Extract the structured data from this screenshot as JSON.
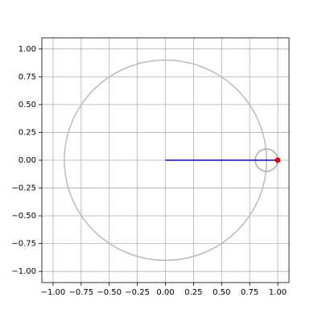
{
  "chart_data": {
    "type": "epicycle",
    "xlim": [
      -1.1,
      1.1
    ],
    "ylim": [
      -1.1,
      1.1
    ],
    "xticks": [
      {
        "value": -1,
        "label": "−1.00"
      },
      {
        "value": -0.75,
        "label": "−0.75"
      },
      {
        "value": -0.5,
        "label": "−0.50"
      },
      {
        "value": -0.25,
        "label": "−0.25"
      },
      {
        "value": 0,
        "label": "0.00"
      },
      {
        "value": 0.25,
        "label": "0.25"
      },
      {
        "value": 0.5,
        "label": "0.50"
      },
      {
        "value": 0.75,
        "label": "0.75"
      },
      {
        "value": 1,
        "label": "1.00"
      }
    ],
    "yticks": [
      {
        "value": -1,
        "label": "−1.00"
      },
      {
        "value": -0.75,
        "label": "−0.75"
      },
      {
        "value": -0.5,
        "label": "−0.50"
      },
      {
        "value": -0.25,
        "label": "−0.25"
      },
      {
        "value": 0,
        "label": "0.00"
      },
      {
        "value": 0.25,
        "label": "0.25"
      },
      {
        "value": 0.5,
        "label": "0.50"
      },
      {
        "value": 0.75,
        "label": "0.75"
      },
      {
        "value": 1,
        "label": "1.00"
      }
    ],
    "grid": true,
    "circles": [
      {
        "cx": 0,
        "cy": 0,
        "r": 0.9,
        "color": "#bbbbbb"
      },
      {
        "cx": 0.9,
        "cy": 0,
        "r": 0.1,
        "color": "#aaaaaa"
      }
    ],
    "series": [
      {
        "color": "#0000ff",
        "x": [
          0,
          0.9,
          1.0
        ],
        "values": [
          0,
          0,
          0
        ]
      }
    ],
    "point": {
      "x": 1.0,
      "y": 0,
      "color": "#ff0000"
    }
  }
}
